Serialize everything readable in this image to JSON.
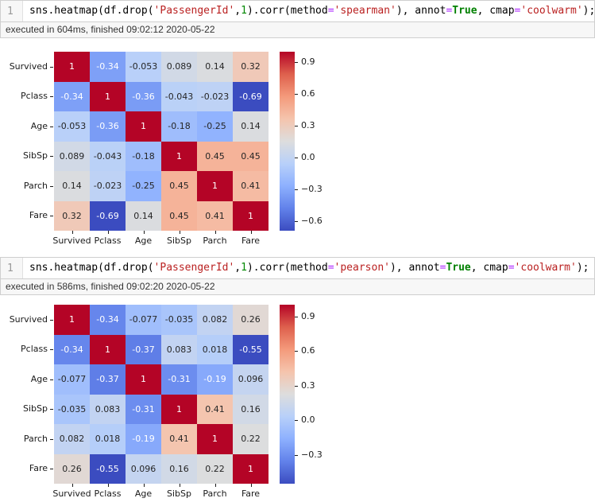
{
  "syntax_colors": {
    "string": "#ba2121",
    "keyword": "#008000",
    "operator": "#aa22ff",
    "number": "#008000",
    "line_number": "#999999",
    "cell_border": "#cfcfcf"
  },
  "cells": [
    {
      "line_number": "1",
      "code_segments": [
        [
          "sns.heatmap(df.drop(",
          "plain"
        ],
        [
          "'PassengerId'",
          "string"
        ],
        [
          ",",
          "plain"
        ],
        [
          "1",
          "number"
        ],
        [
          ").corr(method",
          "plain"
        ],
        [
          "=",
          "operator"
        ],
        [
          "'spearman'",
          "string"
        ],
        [
          "), annot",
          "plain"
        ],
        [
          "=",
          "operator"
        ],
        [
          "True",
          "keyword"
        ],
        [
          ", cmap",
          "plain"
        ],
        [
          "=",
          "operator"
        ],
        [
          "'coolwarm'",
          "string"
        ],
        [
          ");",
          "plain"
        ]
      ],
      "status": "executed in 604ms, finished 09:02:12 2020-05-22"
    },
    {
      "line_number": "1",
      "code_segments": [
        [
          "sns.heatmap(df.drop(",
          "plain"
        ],
        [
          "'PassengerId'",
          "string"
        ],
        [
          ",",
          "plain"
        ],
        [
          "1",
          "number"
        ],
        [
          ").corr(method",
          "plain"
        ],
        [
          "=",
          "operator"
        ],
        [
          "'pearson'",
          "string"
        ],
        [
          "), annot",
          "plain"
        ],
        [
          "=",
          "operator"
        ],
        [
          "True",
          "keyword"
        ],
        [
          ", cmap",
          "plain"
        ],
        [
          "=",
          "operator"
        ],
        [
          "'coolwarm'",
          "string"
        ],
        [
          ");",
          "plain"
        ]
      ],
      "status": "executed in 586ms, finished 09:02:20 2020-05-22"
    }
  ],
  "chart_data": [
    {
      "type": "heatmap",
      "method": "spearman",
      "cmap": "coolwarm",
      "categories": [
        "Survived",
        "Pclass",
        "Age",
        "SibSp",
        "Parch",
        "Fare"
      ],
      "matrix": [
        [
          1,
          -0.34,
          -0.053,
          0.089,
          0.14,
          0.32
        ],
        [
          -0.34,
          1,
          -0.36,
          -0.043,
          -0.023,
          -0.69
        ],
        [
          -0.053,
          -0.36,
          1,
          -0.18,
          -0.25,
          0.14
        ],
        [
          0.089,
          -0.043,
          -0.18,
          1,
          0.45,
          0.45
        ],
        [
          0.14,
          -0.023,
          -0.25,
          0.45,
          1,
          0.41
        ],
        [
          0.32,
          -0.69,
          0.14,
          0.45,
          0.41,
          1
        ]
      ],
      "vmin": -0.69,
      "vmax": 1,
      "annotations": true,
      "colorbar_ticks": [
        {
          "value": 0.9,
          "label": "0.9"
        },
        {
          "value": 0.6,
          "label": "0.6"
        },
        {
          "value": 0.3,
          "label": "0.3"
        },
        {
          "value": 0.0,
          "label": "0.0"
        },
        {
          "value": -0.3,
          "label": "−0.3"
        },
        {
          "value": -0.6,
          "label": "−0.6"
        }
      ]
    },
    {
      "type": "heatmap",
      "method": "pearson",
      "cmap": "coolwarm",
      "categories": [
        "Survived",
        "Pclass",
        "Age",
        "SibSp",
        "Parch",
        "Fare"
      ],
      "matrix": [
        [
          1,
          -0.34,
          -0.077,
          -0.035,
          0.082,
          0.26
        ],
        [
          -0.34,
          1,
          -0.37,
          0.083,
          0.018,
          -0.55
        ],
        [
          -0.077,
          -0.37,
          1,
          -0.31,
          -0.19,
          0.096
        ],
        [
          -0.035,
          0.083,
          -0.31,
          1,
          0.41,
          0.16
        ],
        [
          0.082,
          0.018,
          -0.19,
          0.41,
          1,
          0.22
        ],
        [
          0.26,
          -0.55,
          0.096,
          0.16,
          0.22,
          1
        ]
      ],
      "vmin": -0.55,
      "vmax": 1,
      "annotations": true,
      "colorbar_ticks": [
        {
          "value": 0.9,
          "label": "0.9"
        },
        {
          "value": 0.6,
          "label": "0.6"
        },
        {
          "value": 0.3,
          "label": "0.3"
        },
        {
          "value": 0.0,
          "label": "0.0"
        },
        {
          "value": -0.3,
          "label": "−0.3"
        }
      ]
    }
  ]
}
